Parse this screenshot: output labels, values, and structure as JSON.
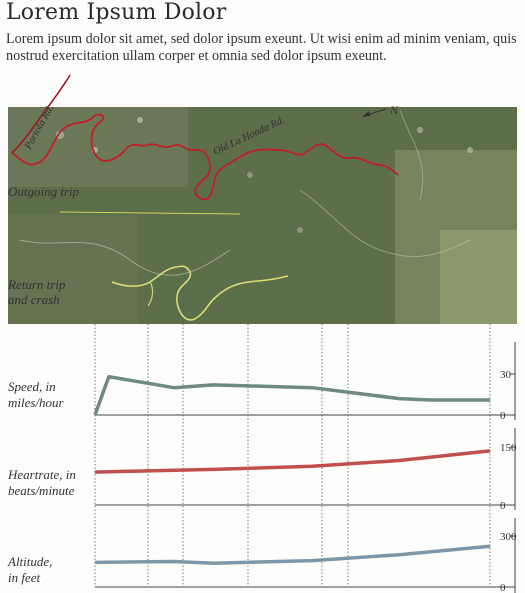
{
  "header": {
    "title": "Lorem Ipsum Dolor",
    "intro": "Lorem ipsum dolor sit amet, sed dolor ipsum exeunt. Ut wisi enim ad minim veniam, quis nostrud exercitation ullam corper et omnia sed dolor ipsum exeunt."
  },
  "map": {
    "labels": {
      "portola": "Portola Rd.",
      "old_la_honda": "Old La Honda Rd.",
      "north": "N",
      "outgoing": "Outgoing trip",
      "return_line1": "Return trip",
      "return_line2": "and crash"
    },
    "colors": {
      "outgoing_route": "#c0202a",
      "return_route": "#e4e27a",
      "terrain": "#5d6e4a"
    }
  },
  "panels": {
    "speed": {
      "label_line1": "Speed, in",
      "label_line2": "miles/hour",
      "ticks": [
        "30",
        "0"
      ],
      "color": "#6f8a7e"
    },
    "heartrate": {
      "label_line1": "Heartrate, in",
      "label_line2": "beats/minute",
      "ticks": [
        "150",
        "0"
      ],
      "color": "#c0504d"
    },
    "altitude": {
      "label_line1": "Altitude,",
      "label_line2": "in feet",
      "ticks": [
        "300",
        "0"
      ],
      "color": "#7e97a8"
    }
  },
  "chart_data": [
    {
      "type": "line",
      "ylabel": "Speed, in miles/hour",
      "ylim": [
        0,
        30
      ],
      "x": [
        0,
        0.035,
        0.2,
        0.3,
        0.55,
        0.77,
        0.85,
        1
      ],
      "values": [
        0,
        28,
        20,
        22,
        20,
        12,
        11,
        11
      ]
    },
    {
      "type": "line",
      "ylabel": "Heartrate, in beats/minute",
      "ylim": [
        0,
        150
      ],
      "x": [
        0,
        0.2,
        0.3,
        0.55,
        0.77,
        1
      ],
      "values": [
        85,
        90,
        92,
        100,
        115,
        140
      ]
    },
    {
      "type": "line",
      "ylabel": "Altitude, in feet",
      "ylim": [
        0,
        300
      ],
      "x": [
        0,
        0.2,
        0.3,
        0.55,
        0.77,
        1
      ],
      "values": [
        145,
        150,
        140,
        155,
        190,
        240
      ]
    }
  ]
}
